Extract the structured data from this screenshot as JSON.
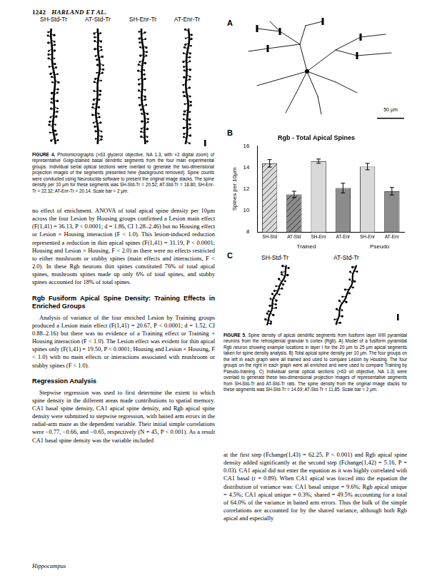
{
  "chart_data": {
    "type": "bar",
    "title": "Rgb - Total Apical Spines",
    "y_label": "Spines per 10μm",
    "categories": [
      "SH-Std",
      "AT-Std",
      "SH-Enr",
      "AT-Enr",
      "SH-Enr",
      "AT-Enr"
    ],
    "group_labels": [
      "Trained",
      "Trained",
      "Trained",
      "Trained",
      "Pseudo",
      "Pseudo"
    ],
    "values": [
      14.4,
      11.5,
      14.6,
      12.1,
      14.1,
      11.8
    ],
    "errors": [
      0.35,
      0.3,
      0.2,
      0.45,
      0.3,
      0.35
    ],
    "colors": [
      "#d9d9d9",
      "#8c8c8c",
      "#d9d9d9",
      "#8c8c8c",
      "#d9d9d9",
      "#8c8c8c"
    ],
    "ylim": [
      8,
      16
    ],
    "yticks": [
      8,
      10,
      12,
      14,
      16
    ],
    "grid": false
  },
  "page": {
    "header": {
      "page_number": "1242",
      "running_head": "HARLAND ET AL."
    },
    "figure4": {
      "group_labels": [
        "SH-Std-Tr",
        "AT-Std-Tr",
        "SH-Enr-Tr",
        "AT-Enr-Tr"
      ],
      "caption_label": "FIGURE 4.",
      "caption": "Photomicrographs (×63 glycerol objective, NA 1.3, with ×2 digital zoom) of representative Golgi-stained basal dendritic segments from the four main experimental groups. Individual serial optical sections were overlaid to generate the two-dimensional projection images of the segments presented here (background removed). Spine counts were conducted using Neurolucida software to present the original image stacks. The spine density per 10 μm for these segments was SH-Std-Tr = 20.52; AT-Std-Tr = 18.80; SH-Enr-Tr = 22.32; AT-Enr-Tr = 20.14. Scale bar = 2 μm."
    },
    "left_column": [
      {
        "type": "continued",
        "text": "no effect of enrichment. ANOVA of total apical spine density per 10μm across the four Lesion by Housing groups confirmed a Lesion main effect (F(1,41) = 36.13, P < 0.0001; d = 1.86, CI 1.28–2.46) but no Housing effect or Lesion × Housing interaction (F < 1.0). This lesion-induced reduction represented a reduction in thin apical spines (F(1,41) = 31.19, P < 0.0001; Housing and Lesion × Housing, F < 2.0) as there were no effects restricted to either mushroom or stubby spines (main effects and interactions, F < 2.0). In these Rgb neurons thin spines constituted 76% of total apical spines, mushroom spines made up only 6% of total spines, and stubby spines accounted for 18% of total spines."
      },
      {
        "type": "heading",
        "text": "Rgb Fusiform Apical Spine Density: Training Effects in Enriched Groups"
      },
      {
        "type": "p",
        "text": "Analysis of variance of the four enriched Lesion by Training groups produced a Lesion main effect (F(1,41) = 20.67, P < 0.0001; d = 1.52, CI 0.88–2.16) but there was no evidence of a Training effect or Training × Housing interaction (F < 1.0). The Lesion effect was evident for thin apical spines only (F(1,41) = 19.50, P < 0.0001; Housing and Lesion × Housing, F < 1.0) with no main effects or interactions associated with mushroom or stubby spines (F < 1.0)."
      },
      {
        "type": "heading",
        "text": "Regression Analysis"
      },
      {
        "type": "p",
        "text": "Stepwise regression was used to first determine the extent to which spine density in the different areas made contributions to spatial memory. CA1 basal spine density, CA1 apical spine density, and Rgb apical spine density were submitted to stepwise regression, with baited arm errors in the radial-arm maze as the dependent variable. Their initial simple correlations were −0.77, −0.66, and −0.65, respectively (N = 45, P < 0.001). As a result CA1 basal spine density was the variable included"
      }
    ],
    "figure5": {
      "panel_labels": [
        "A",
        "B",
        "C"
      ],
      "scale_bar_A": "50 μm",
      "panel_C_labels": [
        "SH-Std-Tr",
        "AT-Std-Tr"
      ],
      "caption_label": "FIGURE 5.",
      "caption": "Spine density of apical dendritic segments from fusiform layer II/III pyramidal neurons from the retrosplenial granular b cortex (Rgb). A) Model of a fusiform pyramidal Rgb neuron showing example locations in layer I for the 20 μm to 25 μm apical segments taken for spine density analysis. B) Total apical spine density per 10 μm. The four groups on the left in each graph were all trained and used to compare Lesion by Housing. The four groups on the right in each graph were all enriched and were used to compare Training by Pseudo-training. C) Individual serial optical sections (×63 oil objective, NA 1.3) were overlaid to generate these two-dimensional projection images of representative segments from SH-Std-Tr and AT-Std-Tr rats. The spine density from the original image stacks for these segments was SH-Std-Tr = 14.69; AT-Std-Tr = 11.85. Scale bar = 2 μm."
    },
    "right_column": [
      {
        "type": "continued",
        "text": "at the first step (Fchange(1,43) = 62.25, P < 0.001) and Rgb apical spine density added significantly at the second step (Fchange(1,42) = 5.16, P = 0.03). CA1 apical did not enter the equation as it was highly correlated with CA1 basal (r = 0.89). When CA1 apical was forced into the equation the distribution of variance was: CA1 basal unique = 9.6%; Rgb apical unique = 4.5%; CA1 apical unique = 0.3%; shared = 49.5% accounting for a total of 64.0% of the variance in baited arm errors. Thus the bulk of the simple correlations are accounted for by the shared variance, although both Rgb apical and especially"
      }
    ],
    "footer": "Hippocampus"
  }
}
